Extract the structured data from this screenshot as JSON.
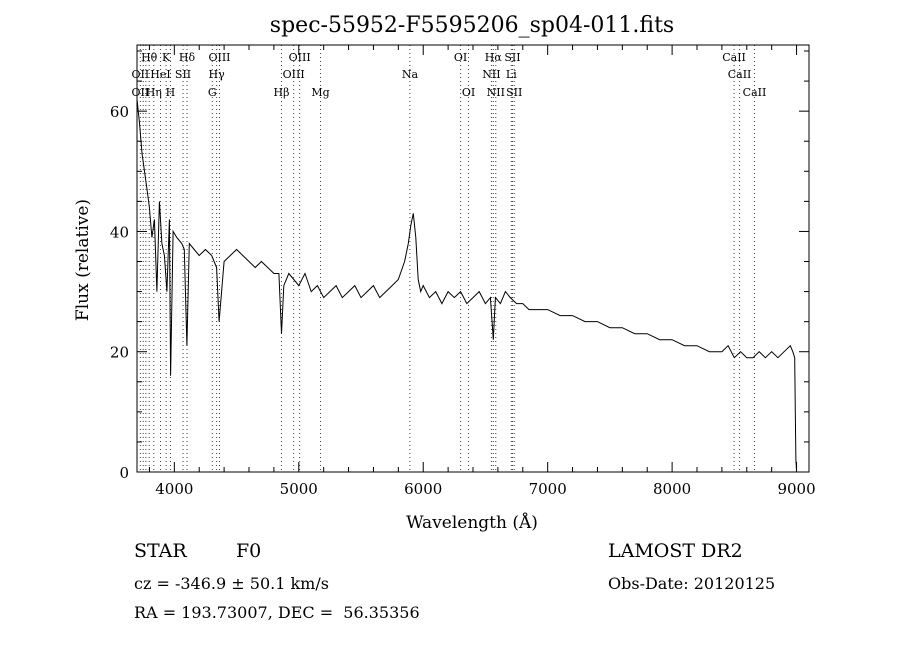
{
  "chart_data": {
    "type": "line",
    "title": "spec-55952-F5595206_sp04-011.fits",
    "xlabel": "Wavelength (Å)",
    "ylabel": "Flux (relative)",
    "xlim": [
      3700,
      9100
    ],
    "ylim": [
      0,
      71
    ],
    "x_ticks": [
      4000,
      5000,
      6000,
      7000,
      8000,
      9000
    ],
    "y_ticks": [
      0,
      20,
      40,
      60
    ],
    "grid": false,
    "series": [
      {
        "x": [
          3700,
          3720,
          3740,
          3760,
          3780,
          3800,
          3820,
          3840,
          3860,
          3880,
          3900,
          3920,
          3940,
          3960,
          3970,
          3990,
          4020,
          4060,
          4080,
          4101,
          4120,
          4160,
          4200,
          4250,
          4300,
          4340,
          4360,
          4400,
          4450,
          4500,
          4550,
          4600,
          4650,
          4700,
          4750,
          4800,
          4840,
          4861,
          4880,
          4920,
          4960,
          5000,
          5050,
          5100,
          5150,
          5200,
          5250,
          5300,
          5350,
          5400,
          5450,
          5500,
          5550,
          5600,
          5650,
          5700,
          5750,
          5800,
          5850,
          5880,
          5900,
          5920,
          5940,
          5960,
          5980,
          6000,
          6050,
          6100,
          6150,
          6200,
          6250,
          6300,
          6350,
          6400,
          6450,
          6500,
          6540,
          6563,
          6580,
          6620,
          6660,
          6700,
          6750,
          6800,
          6850,
          6900,
          6950,
          7000,
          7100,
          7200,
          7300,
          7400,
          7500,
          7600,
          7700,
          7800,
          7900,
          8000,
          8100,
          8200,
          8300,
          8400,
          8450,
          8500,
          8550,
          8600,
          8650,
          8700,
          8750,
          8800,
          8850,
          8900,
          8950,
          8970,
          8985,
          8990,
          8995,
          9000
        ],
        "y": [
          62,
          58,
          53,
          50,
          47,
          44,
          39,
          42,
          30,
          45,
          38,
          36,
          30,
          42,
          16,
          40,
          39,
          38,
          37,
          21,
          38,
          37,
          36,
          37,
          36,
          34,
          25,
          35,
          36,
          37,
          36,
          35,
          34,
          35,
          34,
          33,
          33,
          23,
          31,
          33,
          32,
          31,
          33,
          30,
          31,
          29,
          30,
          31,
          29,
          30,
          31,
          29,
          30,
          31,
          29,
          30,
          31,
          32,
          35,
          38,
          41,
          43,
          39,
          32,
          30,
          31,
          29,
          30,
          28,
          30,
          29,
          30,
          28,
          29,
          30,
          28,
          29,
          22,
          29,
          28,
          30,
          29,
          28,
          28,
          27,
          27,
          27,
          27,
          26,
          26,
          25,
          25,
          24,
          24,
          23,
          23,
          22,
          22,
          21,
          21,
          20,
          20,
          21,
          19,
          20,
          19,
          19,
          20,
          19,
          20,
          19,
          20,
          21,
          20,
          19,
          10,
          2,
          0
        ]
      }
    ],
    "line_markers": [
      {
        "label": "Hθ",
        "x": 3798,
        "row": 0
      },
      {
        "label": "K",
        "x": 3934,
        "row": 0
      },
      {
        "label": "Hδ",
        "x": 4102,
        "row": 0
      },
      {
        "label": "OIII",
        "x": 4363,
        "row": 0
      },
      {
        "label": "OIII",
        "x": 5007,
        "row": 0
      },
      {
        "label": "OI",
        "x": 6300,
        "row": 0
      },
      {
        "label": "Hα",
        "x": 6563,
        "row": 0
      },
      {
        "label": "SII",
        "x": 6717,
        "row": 0
      },
      {
        "label": "CaII",
        "x": 8498,
        "row": 0
      },
      {
        "label": "OII",
        "x": 3727,
        "row": 1
      },
      {
        "label": "HeI",
        "x": 3889,
        "row": 1
      },
      {
        "label": "SII",
        "x": 4070,
        "row": 1
      },
      {
        "label": "Hγ",
        "x": 4340,
        "row": 1
      },
      {
        "label": "OIII",
        "x": 4959,
        "row": 1
      },
      {
        "label": "Na",
        "x": 5893,
        "row": 1
      },
      {
        "label": "NII",
        "x": 6548,
        "row": 1
      },
      {
        "label": "Li",
        "x": 6708,
        "row": 1
      },
      {
        "label": "CaII",
        "x": 8542,
        "row": 1
      },
      {
        "label": "OII",
        "x": 3727,
        "row": 2
      },
      {
        "label": "Hη",
        "x": 3835,
        "row": 2
      },
      {
        "label": "H",
        "x": 3969,
        "row": 2
      },
      {
        "label": "G",
        "x": 4305,
        "row": 2
      },
      {
        "label": "Hβ",
        "x": 4861,
        "row": 2
      },
      {
        "label": "Mg",
        "x": 5175,
        "row": 2
      },
      {
        "label": "OI",
        "x": 6364,
        "row": 2
      },
      {
        "label": "NII",
        "x": 6583,
        "row": 2
      },
      {
        "label": "SII",
        "x": 6731,
        "row": 2
      },
      {
        "label": "CaII",
        "x": 8662,
        "row": 2
      }
    ],
    "line_wavelengths": [
      3727,
      3750,
      3771,
      3798,
      3835,
      3889,
      3934,
      3969,
      4070,
      4102,
      4305,
      4340,
      4363,
      4861,
      4959,
      5007,
      5175,
      5893,
      6300,
      6364,
      6548,
      6563,
      6583,
      6708,
      6717,
      6731,
      8498,
      8542,
      8662
    ],
    "line_marker_color": "#cc0000"
  },
  "info": {
    "object_class": "STAR",
    "subclass": "F0",
    "survey": "LAMOST DR2",
    "redshift": "cz = -346.9 ± 50.1 km/s",
    "obs_date": "Obs-Date: 20120125",
    "coords": "RA = 193.73007, DEC =  56.35356"
  }
}
